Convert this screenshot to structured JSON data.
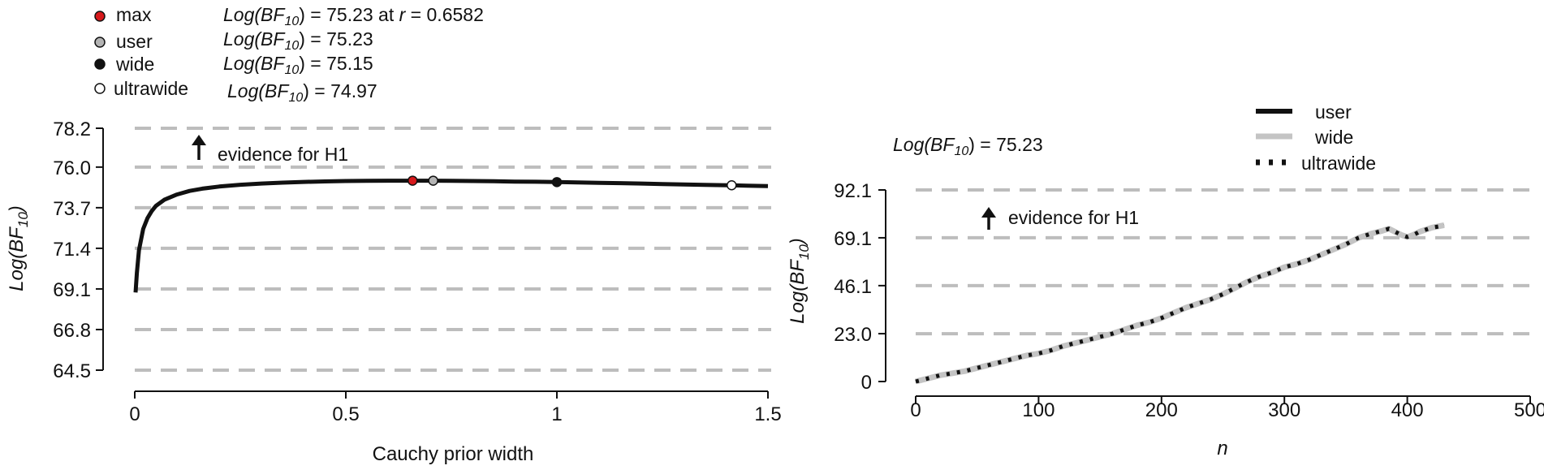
{
  "colors": {
    "max_point": "#d7191c",
    "user_point": "#b4b4b4",
    "wide_point": "#111111",
    "ultrawide_point": "#ffffff",
    "grid": "#bdbdbd",
    "curve": "#111111",
    "seq_user": "#111111",
    "seq_wide": "#c4c4c4",
    "seq_ultrawide": "#111111"
  },
  "chart_data": [
    {
      "type": "line",
      "panel": "robustness",
      "xlabel": "Cauchy prior width",
      "ylabel_prefix": "Log(BF",
      "ylabel_sub": "10",
      "ylabel_suffix": ")",
      "xlim": [
        0,
        1.5
      ],
      "ylim": [
        64.5,
        78.2
      ],
      "xticks": [
        "0",
        "0.5",
        "1",
        "1.5"
      ],
      "xtick_values": [
        0,
        0.5,
        1,
        1.5
      ],
      "yticks": [
        "64.5",
        "66.8",
        "69.1",
        "71.4",
        "73.7",
        "76.0",
        "78.2"
      ],
      "ytick_values": [
        64.5,
        66.8,
        69.1,
        71.4,
        73.7,
        76.0,
        78.2
      ],
      "grid": "horizontal dashed",
      "annotation": "evidence for H1",
      "series": [
        {
          "x": [
            0.002,
            0.005,
            0.01,
            0.02,
            0.03,
            0.04,
            0.05,
            0.07,
            0.1,
            0.13,
            0.16,
            0.2,
            0.25,
            0.3,
            0.35,
            0.4,
            0.45,
            0.5,
            0.55,
            0.6,
            0.6582,
            0.707,
            0.75,
            0.8,
            0.85,
            0.9,
            0.95,
            1.0,
            1.05,
            1.1,
            1.15,
            1.2,
            1.25,
            1.3,
            1.35,
            1.414,
            1.45,
            1.5
          ],
          "y": [
            68.9,
            70.0,
            71.3,
            72.5,
            73.1,
            73.5,
            73.8,
            74.15,
            74.45,
            74.65,
            74.78,
            74.9,
            75.0,
            75.07,
            75.12,
            75.16,
            75.19,
            75.21,
            75.22,
            75.23,
            75.23,
            75.23,
            75.22,
            75.21,
            75.2,
            75.18,
            75.17,
            75.15,
            75.13,
            75.11,
            75.09,
            75.07,
            75.04,
            75.02,
            74.99,
            74.97,
            74.95,
            74.92
          ]
        }
      ],
      "points": [
        {
          "key": "max",
          "label": "max",
          "x": 0.6582,
          "y": 75.23,
          "text_prefix": "Log(BF",
          "text_sub": "10",
          "text_suffix": ") = 75.23 at ",
          "r_label": "r",
          "r_text": " = 0.6582"
        },
        {
          "key": "user",
          "label": "user",
          "x": 0.707,
          "y": 75.23,
          "text_prefix": "Log(BF",
          "text_sub": "10",
          "text_suffix": ") = 75.23"
        },
        {
          "key": "wide",
          "label": "wide",
          "x": 1.0,
          "y": 75.15,
          "text_prefix": "Log(BF",
          "text_sub": "10",
          "text_suffix": ") = 75.15"
        },
        {
          "key": "ultrawide",
          "label": "ultrawide",
          "x": 1.414,
          "y": 74.97,
          "text_prefix": "Log(BF",
          "text_sub": "10",
          "text_suffix": ") = 74.97"
        }
      ]
    },
    {
      "type": "line",
      "panel": "sequential",
      "xlabel": "n",
      "ylabel_prefix": "Log(BF",
      "ylabel_sub": "10",
      "ylabel_suffix": ")",
      "xlim": [
        0,
        500
      ],
      "ylim": [
        0,
        92.1
      ],
      "xticks": [
        "0",
        "100",
        "200",
        "300",
        "400",
        "500"
      ],
      "xtick_values": [
        0,
        100,
        200,
        300,
        400,
        500
      ],
      "yticks": [
        "0",
        "23.0",
        "46.1",
        "69.1",
        "92.1"
      ],
      "ytick_values": [
        0,
        23.0,
        46.1,
        69.1,
        92.1
      ],
      "grid": "horizontal dashed",
      "annotation": "evidence for H1",
      "value_text_prefix": "Log(BF",
      "value_text_sub": "10",
      "value_text_suffix": ") = 75.23",
      "legend": [
        "user",
        "wide",
        "ultrawide"
      ],
      "x": [
        0,
        10,
        20,
        30,
        40,
        50,
        60,
        70,
        80,
        90,
        100,
        110,
        120,
        130,
        140,
        150,
        160,
        170,
        180,
        190,
        200,
        210,
        220,
        230,
        240,
        250,
        260,
        270,
        280,
        290,
        300,
        310,
        320,
        330,
        340,
        350,
        360,
        370,
        380,
        385,
        390,
        395,
        400,
        405,
        410,
        420,
        430
      ],
      "series": [
        {
          "name": "user",
          "values": [
            0,
            1.5,
            3.0,
            4.0,
            5.0,
            6.5,
            8.0,
            9.5,
            11.0,
            12.5,
            13.5,
            15.0,
            17.0,
            18.5,
            20.0,
            21.5,
            23.0,
            25.0,
            27.0,
            28.5,
            30.5,
            33.0,
            35.5,
            37.5,
            39.5,
            42.0,
            45.0,
            48.0,
            50.5,
            52.5,
            55.0,
            56.5,
            58.5,
            61.0,
            63.5,
            66.0,
            69.0,
            71.0,
            72.5,
            73.5,
            72.0,
            70.5,
            69.5,
            70.5,
            72.0,
            74.0,
            75.23
          ]
        },
        {
          "name": "wide",
          "values": [
            0,
            1.5,
            3.0,
            4.0,
            5.0,
            6.5,
            8.0,
            9.5,
            11.0,
            12.5,
            13.5,
            15.0,
            17.0,
            18.5,
            20.0,
            21.5,
            23.0,
            25.0,
            27.0,
            28.5,
            30.5,
            33.0,
            35.5,
            37.5,
            39.5,
            42.0,
            45.0,
            48.0,
            50.5,
            52.5,
            55.0,
            56.5,
            58.5,
            61.0,
            63.5,
            66.0,
            69.0,
            71.0,
            72.5,
            73.5,
            72.0,
            70.5,
            69.5,
            70.5,
            72.0,
            74.0,
            75.15
          ]
        },
        {
          "name": "ultrawide",
          "values": [
            0,
            1.5,
            3.0,
            4.0,
            5.0,
            6.5,
            8.0,
            9.5,
            11.0,
            12.5,
            13.5,
            15.0,
            17.0,
            18.5,
            20.0,
            21.5,
            23.0,
            25.0,
            27.0,
            28.5,
            30.5,
            33.0,
            35.5,
            37.5,
            39.5,
            42.0,
            45.0,
            48.0,
            50.5,
            52.5,
            55.0,
            56.5,
            58.5,
            61.0,
            63.5,
            66.0,
            69.0,
            71.0,
            72.5,
            73.5,
            72.0,
            70.5,
            69.5,
            70.5,
            72.0,
            74.0,
            74.97
          ]
        }
      ]
    }
  ]
}
